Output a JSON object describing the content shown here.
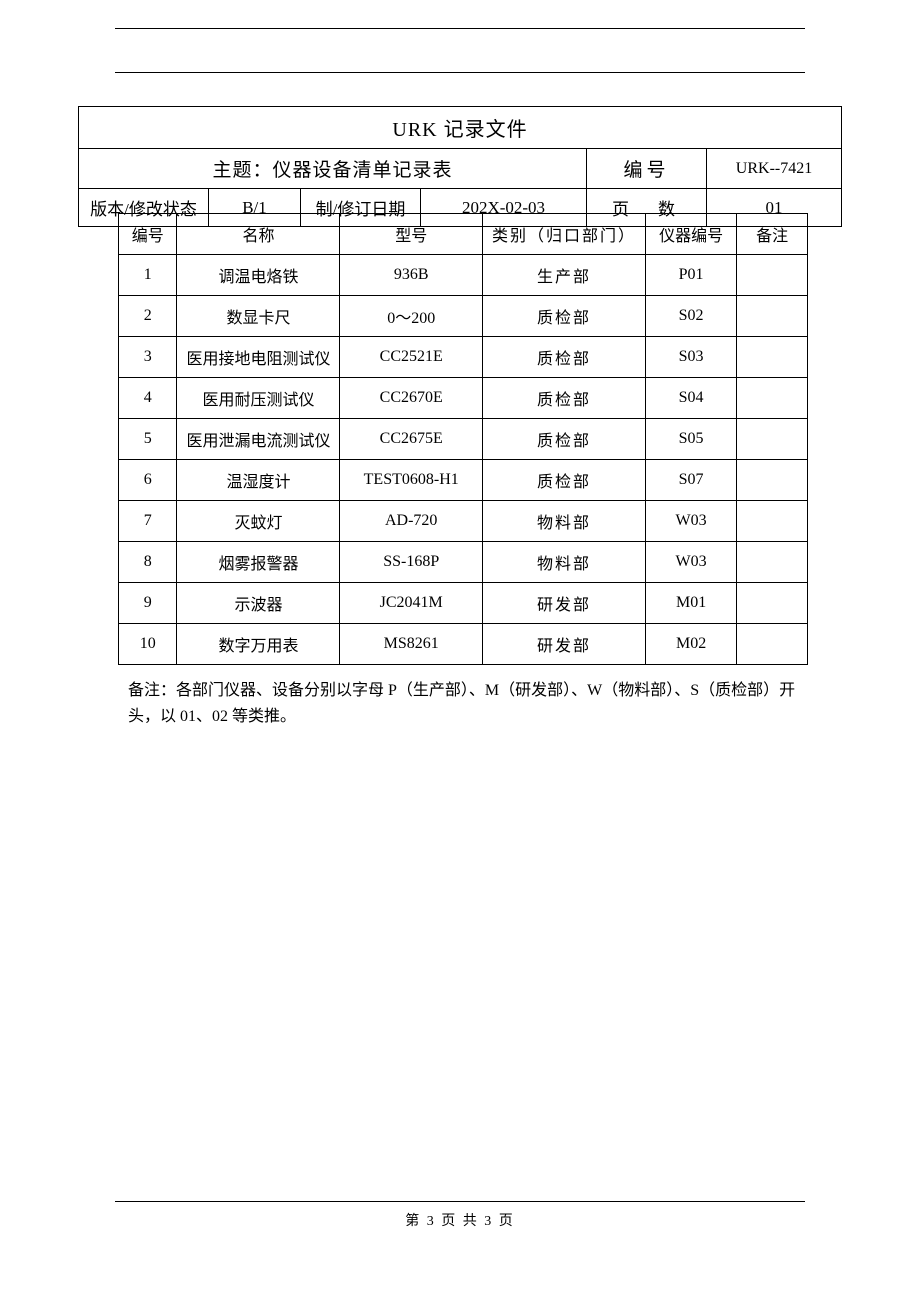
{
  "doc": {
    "title": "URK 记录文件",
    "subject_label": "主题：仪器设备清单记录表",
    "id_label": "编号",
    "id_value": "URK--7421",
    "version_label": "版本/修改状态",
    "version_value": "B/1",
    "rev_date_label": "制/修订日期",
    "rev_date_value": "202X-02-03",
    "page_label": "页　数",
    "page_value": "01"
  },
  "table": {
    "headers": {
      "id": "编号",
      "name": "名称",
      "model": "型号",
      "dept": "类别（归口部门）",
      "code": "仪器编号",
      "note": "备注"
    },
    "rows": [
      {
        "id": "1",
        "name": "调温电烙铁",
        "model": "936B",
        "dept": "生产部",
        "code": "P01",
        "note": ""
      },
      {
        "id": "2",
        "name": "数显卡尺",
        "model": "0～200",
        "dept": "质检部",
        "code": "S02",
        "note": ""
      },
      {
        "id": "3",
        "name": "医用接地电阻测试仪",
        "model": "CC2521E",
        "dept": "质检部",
        "code": "S03",
        "note": ""
      },
      {
        "id": "4",
        "name": "医用耐压测试仪",
        "model": "CC2670E",
        "dept": "质检部",
        "code": "S04",
        "note": ""
      },
      {
        "id": "5",
        "name": "医用泄漏电流测试仪",
        "model": "CC2675E",
        "dept": "质检部",
        "code": "S05",
        "note": ""
      },
      {
        "id": "6",
        "name": "温湿度计",
        "model": "TEST0608-H1",
        "dept": "质检部",
        "code": "S07",
        "note": ""
      },
      {
        "id": "7",
        "name": "灭蚊灯",
        "model": "AD-720",
        "dept": "物料部",
        "code": "W03",
        "note": ""
      },
      {
        "id": "8",
        "name": "烟雾报警器",
        "model": "SS-168P",
        "dept": "物料部",
        "code": "W03",
        "note": ""
      },
      {
        "id": "9",
        "name": "示波器",
        "model": "JC2041M",
        "dept": "研发部",
        "code": "M01",
        "note": ""
      },
      {
        "id": "10",
        "name": "数字万用表",
        "model": "MS8261",
        "dept": "研发部",
        "code": "M02",
        "note": ""
      }
    ]
  },
  "footnote": "备注：各部门仪器、设备分别以字母 P（生产部）、M（研发部）、W（物料部）、S（质检部）开头，以 01、02 等类推。",
  "footer": "第 3 页 共 3 页"
}
